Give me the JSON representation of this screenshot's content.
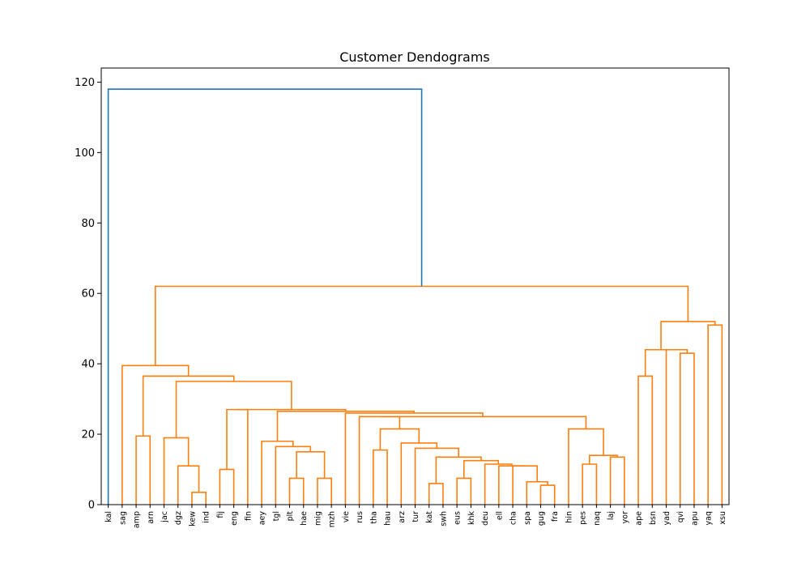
{
  "chart_data": {
    "type": "dendrogram",
    "title": "Customer Dendograms",
    "ylim": [
      0,
      124
    ],
    "yticks": [
      0,
      20,
      40,
      60,
      80,
      100,
      120
    ],
    "leaves": [
      "kal",
      "sag",
      "amp",
      "arn",
      "jac",
      "dgz",
      "kew",
      "ind",
      "fij",
      "eng",
      "fin",
      "aey",
      "tgl",
      "plt",
      "hae",
      "mig",
      "mzh",
      "vie",
      "rus",
      "tha",
      "hau",
      "arz",
      "tur",
      "kat",
      "swh",
      "eus",
      "khk",
      "deu",
      "ell",
      "cha",
      "spa",
      "gug",
      "fra",
      "hin",
      "pes",
      "naq",
      "laj",
      "yor",
      "ape",
      "bsn",
      "yad",
      "qvi",
      "apu",
      "yaq",
      "xsu"
    ],
    "colors": {
      "root": "#1f77b4",
      "cluster": "#ff7f0e"
    },
    "merges": [
      {
        "id": "c1",
        "left": "ind",
        "right": "kew",
        "height": 3.5,
        "color": "cluster"
      },
      {
        "id": "c2",
        "left": "dgz",
        "right": "c1",
        "height": 11,
        "color": "cluster"
      },
      {
        "id": "c3",
        "left": "jac",
        "right": "c2",
        "height": 19,
        "color": "cluster"
      },
      {
        "id": "c4",
        "left": "amp",
        "right": "arn",
        "height": 19.5,
        "color": "cluster"
      },
      {
        "id": "c5",
        "left": "fij",
        "right": "eng",
        "height": 10,
        "color": "cluster"
      },
      {
        "id": "c6",
        "left": "c5",
        "right": "fin",
        "height": 27,
        "color": "cluster"
      },
      {
        "id": "c7",
        "left": "hae",
        "right": "plt",
        "height": 7.5,
        "color": "cluster"
      },
      {
        "id": "c8",
        "left": "mig",
        "right": "mzh",
        "height": 7.5,
        "color": "cluster"
      },
      {
        "id": "c9",
        "left": "c7",
        "right": "c8",
        "height": 15,
        "color": "cluster"
      },
      {
        "id": "c10",
        "left": "tgl",
        "right": "c9",
        "height": 16.5,
        "color": "cluster"
      },
      {
        "id": "c11",
        "left": "aey",
        "right": "c10",
        "height": 18,
        "color": "cluster"
      },
      {
        "id": "c12",
        "left": "kat",
        "right": "swh",
        "height": 6,
        "color": "cluster"
      },
      {
        "id": "c13",
        "left": "eus",
        "right": "khk",
        "height": 7.5,
        "color": "cluster"
      },
      {
        "id": "c14",
        "left": "gug",
        "right": "fra",
        "height": 5.5,
        "color": "cluster"
      },
      {
        "id": "c15",
        "left": "spa",
        "right": "c14",
        "height": 6.5,
        "color": "cluster"
      },
      {
        "id": "c16",
        "left": "cha",
        "right": "c15",
        "height": 11,
        "color": "cluster"
      },
      {
        "id": "c17",
        "left": "ell",
        "right": "c16",
        "height": 11,
        "color": "cluster"
      },
      {
        "id": "c18",
        "left": "deu",
        "right": "c17",
        "height": 11.5,
        "color": "cluster"
      },
      {
        "id": "c19",
        "left": "c13",
        "right": "c18",
        "height": 12.5,
        "color": "cluster"
      },
      {
        "id": "c20",
        "left": "c12",
        "right": "c19",
        "height": 13.5,
        "color": "cluster"
      },
      {
        "id": "c21",
        "left": "tur",
        "right": "c20",
        "height": 16,
        "color": "cluster"
      },
      {
        "id": "c22",
        "left": "arz",
        "right": "c21",
        "height": 17.5,
        "color": "cluster"
      },
      {
        "id": "c23",
        "left": "tha",
        "right": "hau",
        "height": 15.5,
        "color": "cluster"
      },
      {
        "id": "c24",
        "left": "c23",
        "right": "c22",
        "height": 21.5,
        "color": "cluster"
      },
      {
        "id": "c25",
        "left": "pes",
        "right": "naq",
        "height": 11.5,
        "color": "cluster"
      },
      {
        "id": "c26",
        "left": "laj",
        "right": "yor",
        "height": 13.5,
        "color": "cluster"
      },
      {
        "id": "c27",
        "left": "c25",
        "right": "c26",
        "height": 14,
        "color": "cluster"
      },
      {
        "id": "c28",
        "left": "hin",
        "right": "c27",
        "height": 21.5,
        "color": "cluster"
      },
      {
        "id": "c29",
        "left": "rus",
        "right": "c24",
        "height": 25,
        "color": "cluster"
      },
      {
        "id": "c30",
        "left": "c29",
        "right": "c28",
        "height": 25,
        "color": "cluster"
      },
      {
        "id": "c31",
        "left": "vie",
        "right": "c30",
        "height": 26,
        "color": "cluster"
      },
      {
        "id": "c32",
        "left": "c11",
        "right": "c31",
        "height": 26.5,
        "color": "cluster"
      },
      {
        "id": "c33",
        "left": "c6",
        "right": "c32",
        "height": 27,
        "color": "cluster"
      },
      {
        "id": "c34",
        "left": "c3",
        "right": "c33",
        "height": 35,
        "color": "cluster"
      },
      {
        "id": "c35",
        "left": "c4",
        "right": "c34",
        "height": 36.5,
        "color": "cluster"
      },
      {
        "id": "c36",
        "left": "sag",
        "right": "c35",
        "height": 39.5,
        "color": "cluster"
      },
      {
        "id": "c37",
        "left": "ape",
        "right": "bsn",
        "height": 36.5,
        "color": "cluster"
      },
      {
        "id": "c38",
        "left": "qvi",
        "right": "apu",
        "height": 43,
        "color": "cluster"
      },
      {
        "id": "c39",
        "left": "yad",
        "right": "c38",
        "height": 44,
        "color": "cluster"
      },
      {
        "id": "c40",
        "left": "c37",
        "right": "c39",
        "height": 44,
        "color": "cluster"
      },
      {
        "id": "c41",
        "left": "yaq",
        "right": "xsu",
        "height": 51,
        "color": "cluster"
      },
      {
        "id": "c42",
        "left": "c40",
        "right": "c41",
        "height": 52,
        "color": "cluster"
      },
      {
        "id": "c43",
        "left": "c36",
        "right": "c42",
        "height": 62,
        "color": "cluster"
      },
      {
        "id": "c44",
        "left": "kal",
        "right": "c43",
        "height": 118,
        "color": "root"
      }
    ]
  }
}
